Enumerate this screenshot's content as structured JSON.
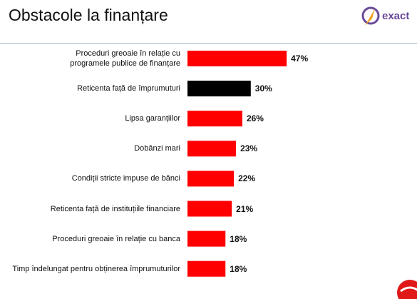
{
  "chart_data": {
    "type": "bar",
    "orientation": "horizontal",
    "title": "Obstacole la finanțare",
    "logo_text": "exact",
    "categories": [
      "Proceduri greoaie în relație cu\nprogramele publice de finanțare",
      "Reticenta față de împrumuturi",
      "Lipsa garanțiilor",
      "Dobânzi mari",
      "Condiții stricte impuse de bănci",
      "Reticenta față de instituțiile  financiare",
      "Proceduri greoaie în relație cu banca",
      "Timp îndelungat pentru obținerea împrumuturilor"
    ],
    "values": [
      47,
      30,
      26,
      23,
      22,
      21,
      18,
      18
    ],
    "value_labels": [
      "47%",
      "30%",
      "26%",
      "23%",
      "22%",
      "21%",
      "18%",
      "18%"
    ],
    "colors": [
      "#ff0000",
      "#000000",
      "#ff0000",
      "#ff0000",
      "#ff0000",
      "#ff0000",
      "#ff0000",
      "#ff0000"
    ]
  }
}
